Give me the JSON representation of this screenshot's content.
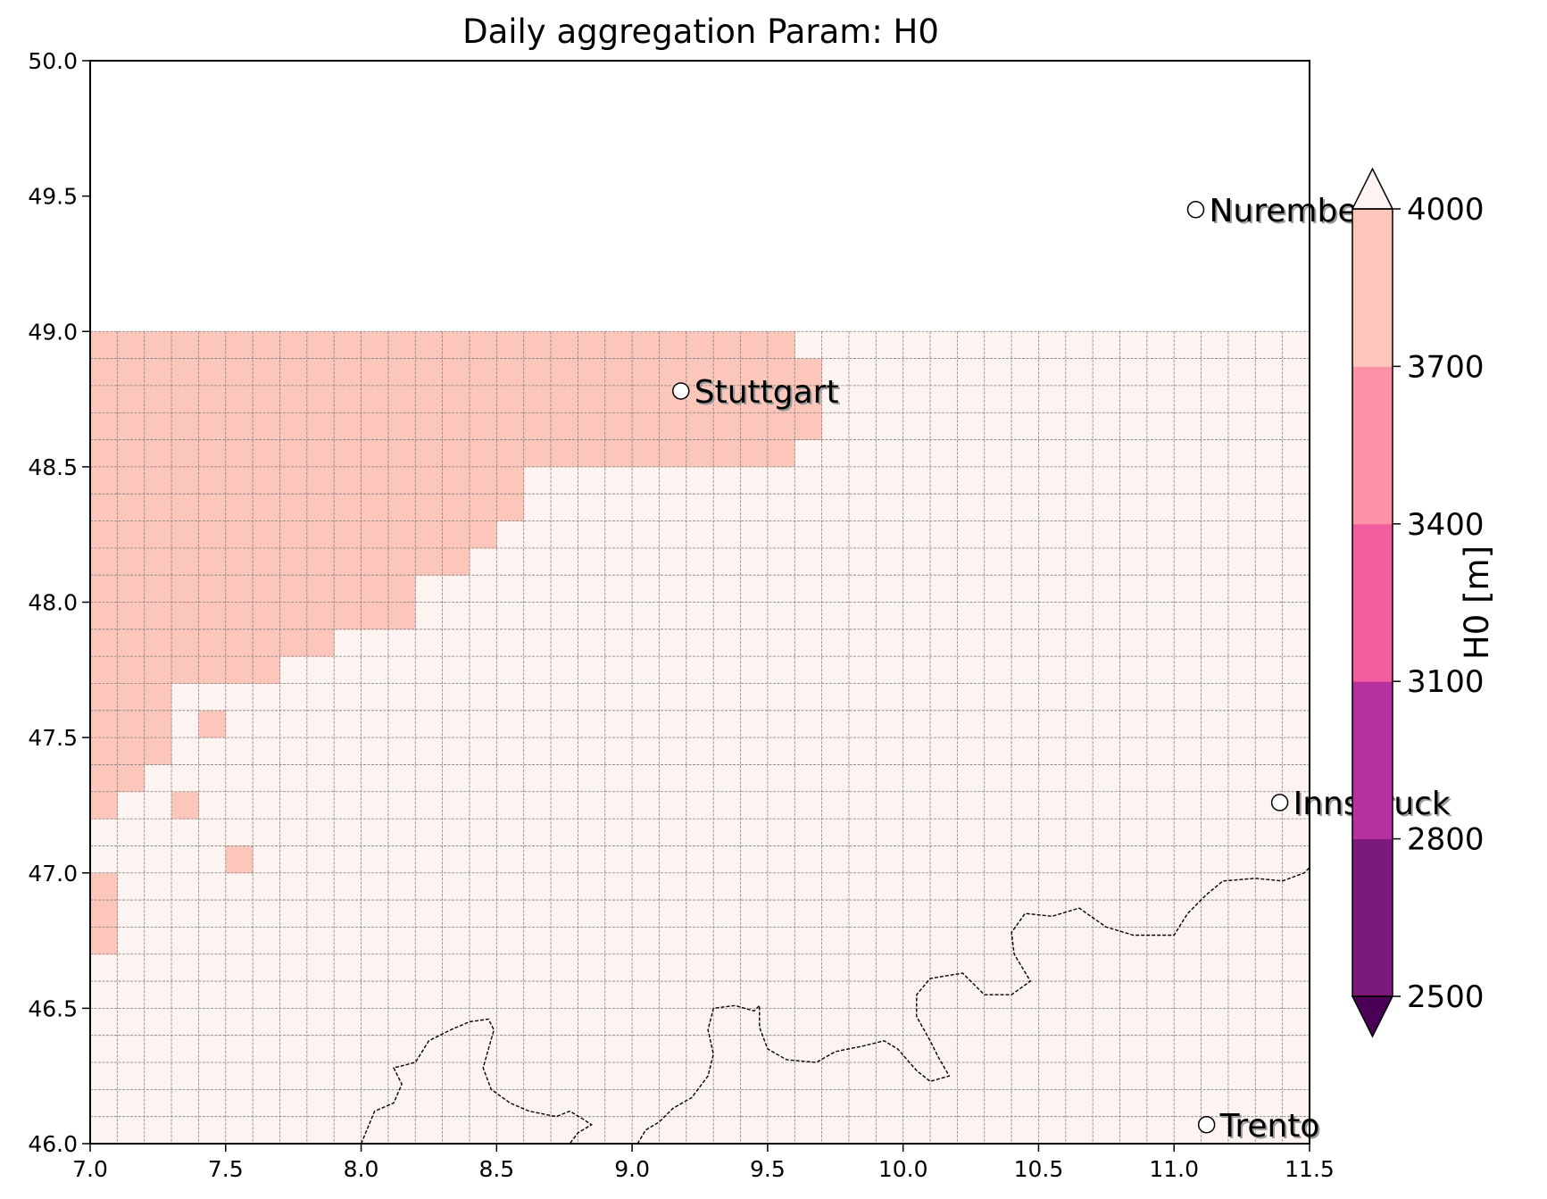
{
  "title": "Daily aggregation Param: H0",
  "map": {
    "lon_range": [
      7.0,
      11.5
    ],
    "lat_range": [
      46.0,
      50.0
    ],
    "x_ticks": [
      "7.0",
      "7.5",
      "8.0",
      "8.5",
      "9.0",
      "9.5",
      "10.0",
      "10.5",
      "11.0",
      "11.5"
    ],
    "y_ticks": [
      "46.0",
      "46.5",
      "47.0",
      "47.5",
      "48.0",
      "48.5",
      "49.0",
      "49.5",
      "50.0"
    ],
    "grid": {
      "cell_size_deg": 0.1,
      "lat_top": 49.0,
      "lat_bottom": 46.0,
      "lon_left": 7.0,
      "lon_right": 11.5,
      "background_color": "#fdf4f1",
      "line_color": "#7f7f7f",
      "high_color": "#fcc7ba",
      "high_rows": [
        {
          "lat_from": 48.9,
          "lat_to": 49.0,
          "lon_from": 7.0,
          "lon_to": 9.6
        },
        {
          "lat_from": 48.6,
          "lat_to": 48.9,
          "lon_from": 7.0,
          "lon_to": 9.7
        },
        {
          "lat_from": 48.5,
          "lat_to": 48.6,
          "lon_from": 7.0,
          "lon_to": 9.6
        },
        {
          "lat_from": 48.3,
          "lat_to": 48.5,
          "lon_from": 7.0,
          "lon_to": 8.6
        },
        {
          "lat_from": 48.2,
          "lat_to": 48.3,
          "lon_from": 7.0,
          "lon_to": 8.5
        },
        {
          "lat_from": 48.1,
          "lat_to": 48.2,
          "lon_from": 7.0,
          "lon_to": 8.4
        },
        {
          "lat_from": 47.9,
          "lat_to": 48.1,
          "lon_from": 7.0,
          "lon_to": 8.2
        },
        {
          "lat_from": 47.8,
          "lat_to": 47.9,
          "lon_from": 7.0,
          "lon_to": 7.9
        },
        {
          "lat_from": 47.7,
          "lat_to": 47.8,
          "lon_from": 7.0,
          "lon_to": 7.7
        },
        {
          "lat_from": 47.4,
          "lat_to": 47.7,
          "lon_from": 7.0,
          "lon_to": 7.3
        },
        {
          "lat_from": 47.3,
          "lat_to": 47.4,
          "lon_from": 7.0,
          "lon_to": 7.2
        },
        {
          "lat_from": 47.2,
          "lat_to": 47.3,
          "lon_from": 7.0,
          "lon_to": 7.1
        },
        {
          "lat_from": 46.7,
          "lat_to": 47.0,
          "lon_from": 7.0,
          "lon_to": 7.1
        },
        {
          "lat_from": 47.5,
          "lat_to": 47.6,
          "lon_from": 7.4,
          "lon_to": 7.5
        },
        {
          "lat_from": 47.2,
          "lat_to": 47.3,
          "lon_from": 7.3,
          "lon_to": 7.4
        },
        {
          "lat_from": 47.0,
          "lat_to": 47.1,
          "lon_from": 7.5,
          "lon_to": 7.6
        }
      ]
    },
    "cities": [
      {
        "name": "Nuremberg",
        "lon": 11.08,
        "lat": 49.45
      },
      {
        "name": "Stuttgart",
        "lon": 9.18,
        "lat": 48.78
      },
      {
        "name": "Innsbruck",
        "lon": 11.39,
        "lat": 47.26
      },
      {
        "name": "Trento",
        "lon": 11.12,
        "lat": 46.07
      }
    ],
    "borders": [
      [
        [
          8.0,
          46.0
        ],
        [
          8.05,
          46.12
        ],
        [
          8.12,
          46.15
        ],
        [
          8.15,
          46.22
        ],
        [
          8.12,
          46.28
        ],
        [
          8.2,
          46.3
        ],
        [
          8.25,
          46.38
        ],
        [
          8.33,
          46.42
        ],
        [
          8.4,
          46.45
        ],
        [
          8.47,
          46.46
        ],
        [
          8.49,
          46.42
        ],
        [
          8.47,
          46.35
        ],
        [
          8.45,
          46.28
        ],
        [
          8.48,
          46.2
        ],
        [
          8.55,
          46.15
        ],
        [
          8.62,
          46.12
        ],
        [
          8.72,
          46.1
        ],
        [
          8.77,
          46.12
        ],
        [
          8.82,
          46.09
        ],
        [
          8.85,
          46.07
        ],
        [
          8.8,
          46.04
        ],
        [
          8.77,
          46.0
        ]
      ],
      [
        [
          9.02,
          46.0
        ],
        [
          9.05,
          46.05
        ],
        [
          9.1,
          46.08
        ],
        [
          9.15,
          46.13
        ],
        [
          9.22,
          46.17
        ],
        [
          9.28,
          46.25
        ],
        [
          9.3,
          46.33
        ],
        [
          9.28,
          46.42
        ],
        [
          9.3,
          46.5
        ],
        [
          9.38,
          46.51
        ],
        [
          9.45,
          46.49
        ],
        [
          9.47,
          46.51
        ],
        [
          9.47,
          46.43
        ],
        [
          9.5,
          46.35
        ],
        [
          9.57,
          46.31
        ],
        [
          9.68,
          46.3
        ],
        [
          9.75,
          46.34
        ],
        [
          9.85,
          46.36
        ],
        [
          9.93,
          46.38
        ],
        [
          9.98,
          46.35
        ],
        [
          10.05,
          46.27
        ],
        [
          10.1,
          46.23
        ],
        [
          10.17,
          46.25
        ],
        [
          10.13,
          46.32
        ],
        [
          10.1,
          46.38
        ],
        [
          10.05,
          46.47
        ],
        [
          10.05,
          46.55
        ],
        [
          10.1,
          46.61
        ],
        [
          10.22,
          46.63
        ],
        [
          10.3,
          46.55
        ],
        [
          10.4,
          46.55
        ],
        [
          10.47,
          46.6
        ],
        [
          10.41,
          46.7
        ],
        [
          10.4,
          46.78
        ],
        [
          10.45,
          46.85
        ],
        [
          10.55,
          46.84
        ],
        [
          10.65,
          46.87
        ],
        [
          10.75,
          46.8
        ],
        [
          10.85,
          46.77
        ],
        [
          10.95,
          46.77
        ],
        [
          11.0,
          46.77
        ],
        [
          11.05,
          46.85
        ],
        [
          11.12,
          46.92
        ],
        [
          11.18,
          46.97
        ],
        [
          11.3,
          46.98
        ],
        [
          11.4,
          46.97
        ],
        [
          11.48,
          47.0
        ],
        [
          11.5,
          47.02
        ]
      ]
    ]
  },
  "colorbar": {
    "label": "H0  [m]",
    "ticks": [
      "2500",
      "2800",
      "3100",
      "3400",
      "3700",
      "4000"
    ],
    "levels": [
      2500,
      2800,
      3100,
      3400,
      3700,
      4000
    ],
    "colors": [
      "#7b1a7a",
      "#b5319d",
      "#f25d9f",
      "#fb92a7",
      "#fcc7ba"
    ],
    "under_color": "#4b0057",
    "over_color": "#fdf4f1"
  }
}
